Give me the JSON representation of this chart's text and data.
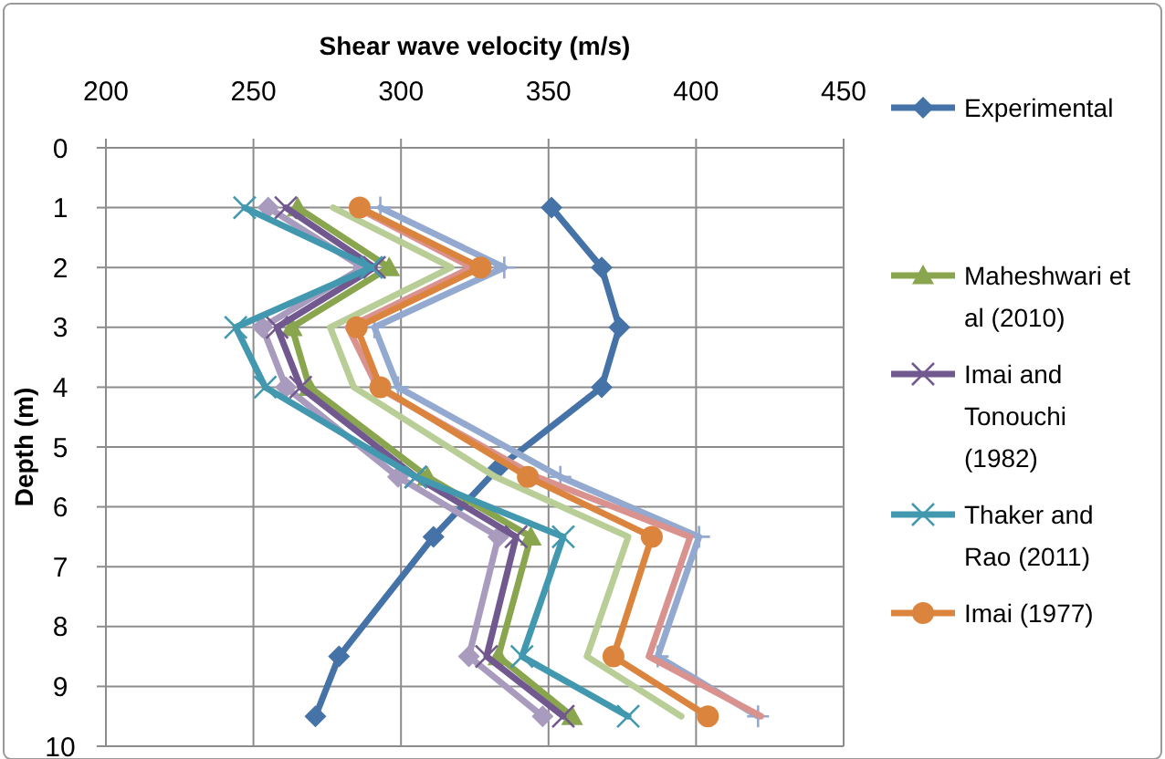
{
  "chart_data": {
    "type": "line",
    "xlabel": "Shear wave velocity (m/s)",
    "ylabel": "Depth (m)",
    "xlim": [
      200,
      450
    ],
    "xticks": [
      200,
      250,
      300,
      350,
      400,
      450
    ],
    "ylim": [
      10,
      0
    ],
    "yticks": [
      0,
      1,
      2,
      3,
      4,
      5,
      6,
      7,
      8,
      9,
      10
    ],
    "grid": true,
    "legend": "right",
    "series": [
      {
        "name": "Experimental",
        "color": "#4572a7",
        "marker": "diamond",
        "x": [
          351,
          368,
          374,
          368,
          333,
          311,
          279,
          271
        ],
        "values": [
          1,
          2,
          3,
          4,
          5.35,
          6.5,
          8.5,
          9.5
        ]
      },
      {
        "color": "#93a9cf",
        "marker": "plus",
        "x": [
          293,
          335,
          291,
          299,
          354,
          401,
          387,
          421
        ],
        "values": [
          1,
          2,
          3,
          4,
          5.5,
          6.5,
          8.5,
          9.5
        ]
      },
      {
        "color": "#d9928e",
        "marker": "none",
        "x": [
          285,
          324,
          282,
          292,
          346,
          398,
          384,
          422
        ],
        "values": [
          1,
          2,
          3,
          4,
          5.5,
          6.5,
          8.5,
          9.5
        ]
      },
      {
        "color": "#b9cd96",
        "marker": "none",
        "x": [
          277,
          317,
          276,
          284,
          332,
          377,
          363,
          395
        ],
        "values": [
          1,
          2,
          3,
          4,
          5.5,
          6.5,
          8.5,
          9.5
        ]
      },
      {
        "color": "#a99bbd",
        "marker": "diamond",
        "x": [
          255,
          287,
          253,
          261,
          299,
          333,
          323,
          348
        ],
        "values": [
          1,
          2,
          3,
          4,
          5.5,
          6.5,
          8.5,
          9.5
        ]
      },
      {
        "name": "Maheshwari et al (2010)",
        "color": "#89a54e",
        "marker": "triangle",
        "x": [
          265,
          296,
          263,
          269,
          309,
          344,
          333,
          358
        ],
        "values": [
          1,
          2,
          3,
          4,
          5.5,
          6.5,
          8.5,
          9.5
        ]
      },
      {
        "name": "Imai and Tonouchi (1982)",
        "color": "#71588f",
        "marker": "cross",
        "x": [
          261,
          291,
          258,
          266,
          305,
          339,
          329,
          355
        ],
        "values": [
          1,
          2,
          3,
          4,
          5.5,
          6.5,
          8.5,
          9.5
        ]
      },
      {
        "name": "Thaker and Rao (2011)",
        "color": "#4198af",
        "marker": "cross",
        "x": [
          247,
          290,
          244,
          254,
          305,
          355,
          341,
          377
        ],
        "values": [
          1,
          2,
          3,
          4,
          5.5,
          6.5,
          8.5,
          9.5
        ]
      },
      {
        "name": "Imai (1977)",
        "color": "#db843d",
        "marker": "circle",
        "x": [
          286,
          327,
          285,
          293,
          343,
          385,
          372,
          404
        ],
        "values": [
          1,
          2,
          3,
          4,
          5.5,
          6.5,
          8.5,
          9.5
        ]
      }
    ]
  }
}
